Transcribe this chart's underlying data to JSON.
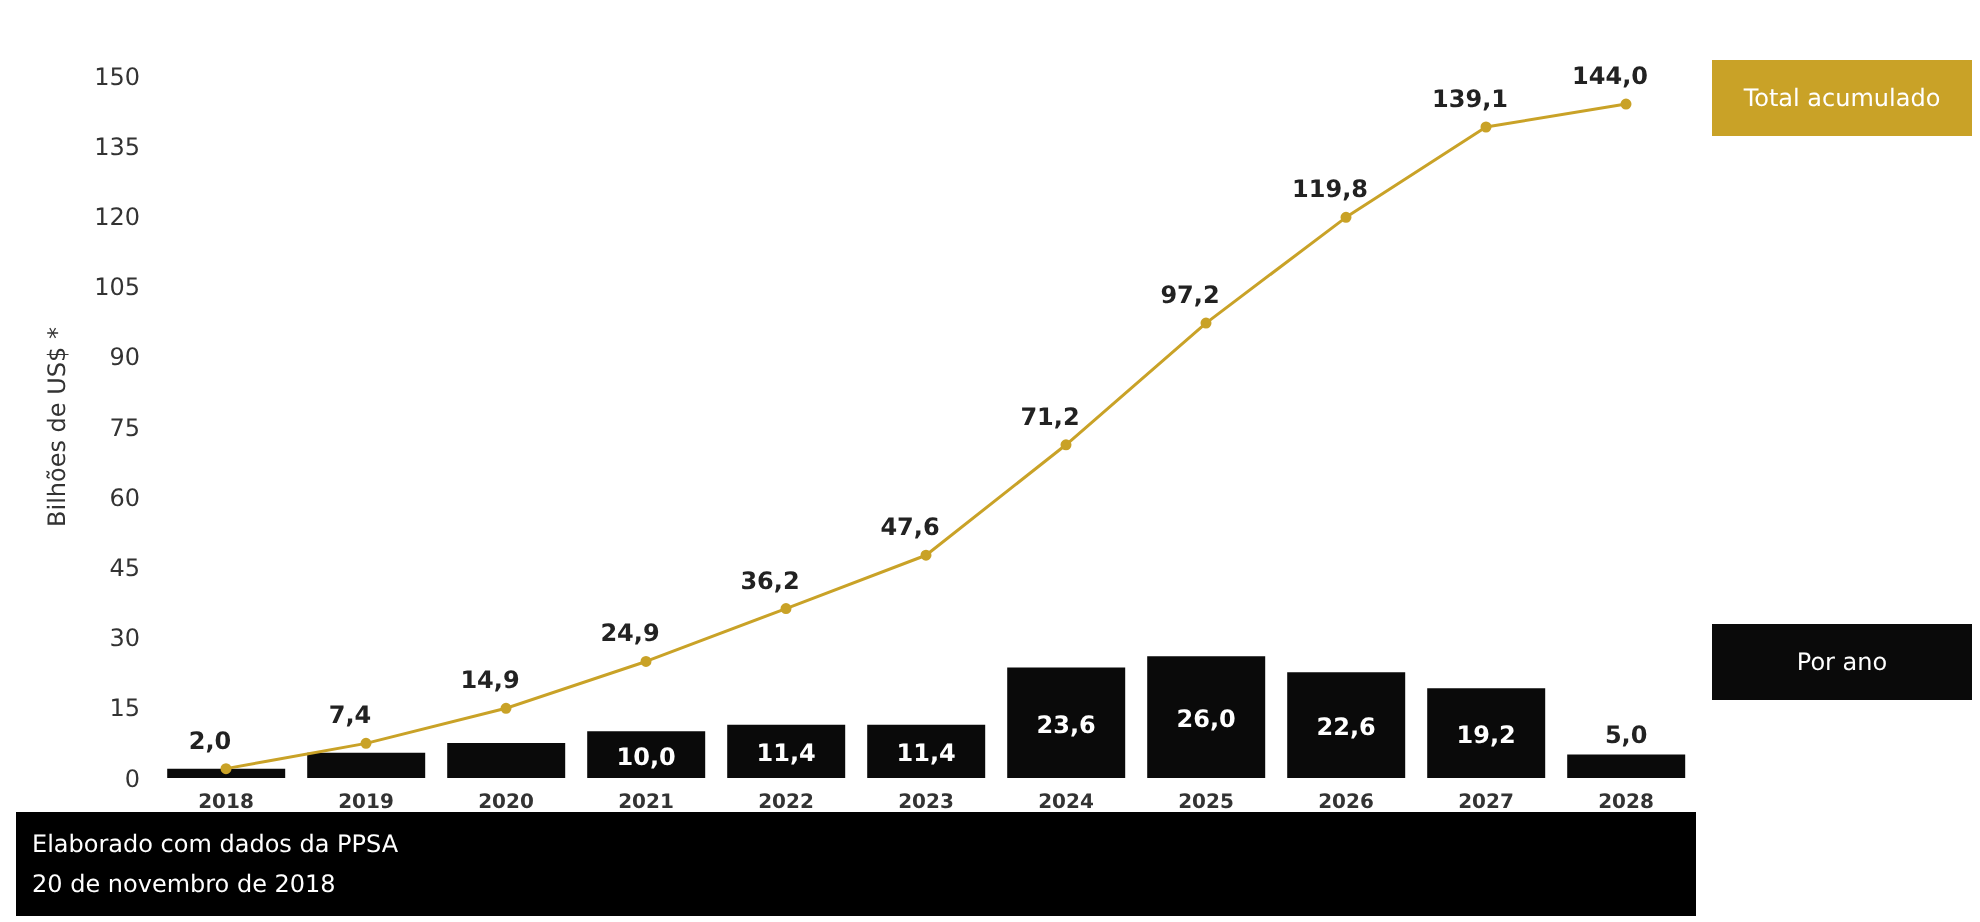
{
  "chart_data": {
    "type": "bar",
    "ylabel": "Bilhões de US$ *",
    "categories": [
      "2018",
      "2019",
      "2020",
      "2021",
      "2022",
      "2023",
      "2024",
      "2025",
      "2026",
      "2027",
      "2028"
    ],
    "series": [
      {
        "name": "Por ano",
        "color": "#0a0a0a",
        "values": [
          2.0,
          5.4,
          7.5,
          10.0,
          11.4,
          11.4,
          23.6,
          26.0,
          22.6,
          19.2,
          5.0
        ],
        "value_labels": [
          null,
          null,
          null,
          "10,0",
          "11,4",
          "11,4",
          "23,6",
          "26,0",
          "22,6",
          "19,2",
          "5,0"
        ]
      },
      {
        "name": "Total acumulado",
        "type": "line",
        "color": "#c9a227",
        "values": [
          2.0,
          7.4,
          14.9,
          24.9,
          36.2,
          47.6,
          71.2,
          97.2,
          119.8,
          139.1,
          144.0
        ],
        "value_labels": [
          "2,0",
          "7,4",
          "14,9",
          "24,9",
          "36,2",
          "47,6",
          "71,2",
          "97,2",
          "119,8",
          "139,1",
          "144,0"
        ]
      }
    ],
    "ylim": [
      0,
      150
    ],
    "yticks": [
      0,
      15,
      30,
      45,
      60,
      75,
      90,
      105,
      120,
      135,
      150
    ],
    "legend": "right",
    "marker": "circle",
    "line_style": "solid",
    "annotations": [
      "Elaborado com dados da PPSA",
      "20 de novembro de 2018"
    ]
  }
}
